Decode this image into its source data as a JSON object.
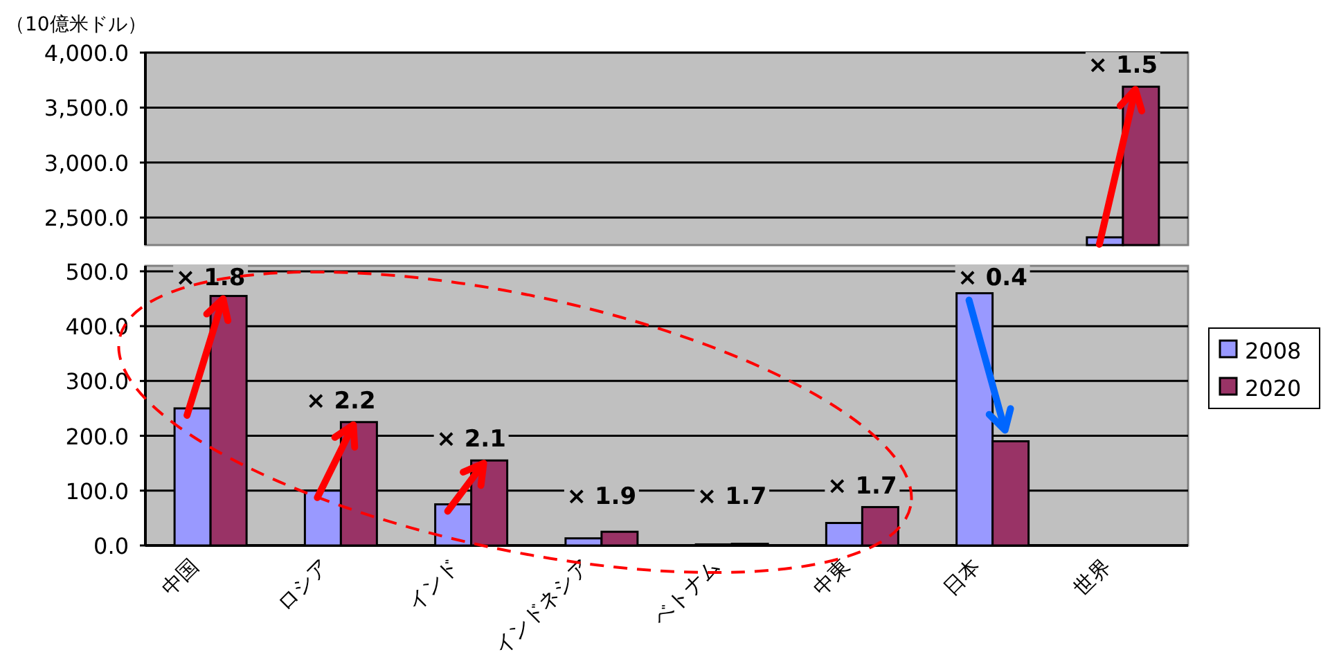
{
  "chart_data": [
    {
      "type": "bar",
      "ylabel": "（10億米ドル）",
      "categories": [
        null,
        null,
        null,
        null,
        null,
        null,
        null,
        null
      ],
      "series": [
        {
          "color": "#9999ff",
          "values": [
            null,
            null,
            null,
            null,
            null,
            null,
            null,
            2320
          ]
        },
        {
          "color": "#993366",
          "values": [
            null,
            null,
            null,
            null,
            null,
            null,
            null,
            3690
          ]
        }
      ],
      "ylim": [
        2250,
        4000
      ],
      "yticks": [
        {
          "value": 2500,
          "label": "2,500.0"
        },
        {
          "value": 3000,
          "label": "3,000.0"
        },
        {
          "value": 3500,
          "label": "3,500.0"
        },
        {
          "value": 4000,
          "label": "4,000.0"
        }
      ],
      "grid": "y",
      "tick_labels": "y",
      "annotations": [
        "× 1.5"
      ]
    },
    {
      "type": "bar",
      "categories": [
        "中国",
        "ロシア",
        "インド",
        "インドネシア",
        "ベトナム",
        "中東",
        "日本",
        "世界"
      ],
      "series": [
        {
          "name": "2008",
          "color": "#9999ff",
          "values": [
            250,
            100,
            75,
            13,
            2,
            41,
            460,
            null
          ]
        },
        {
          "name": "2020",
          "color": "#993366",
          "values": [
            455,
            225,
            155,
            25,
            3,
            70,
            190,
            null
          ]
        }
      ],
      "ylim": [
        0,
        510
      ],
      "yticks": [
        {
          "value": 0,
          "label": "0.0"
        },
        {
          "value": 100,
          "label": "100.0"
        },
        {
          "value": 200,
          "label": "200.0"
        },
        {
          "value": 300,
          "label": "300.0"
        },
        {
          "value": 400,
          "label": "400.0"
        },
        {
          "value": 500,
          "label": "500.0"
        }
      ],
      "grid": "y",
      "legend": "right",
      "annotations": [
        "× 1.8",
        "× 2.2",
        "× 2.1",
        "× 1.9",
        "× 1.7",
        "× 1.7",
        "× 0.4"
      ]
    }
  ]
}
